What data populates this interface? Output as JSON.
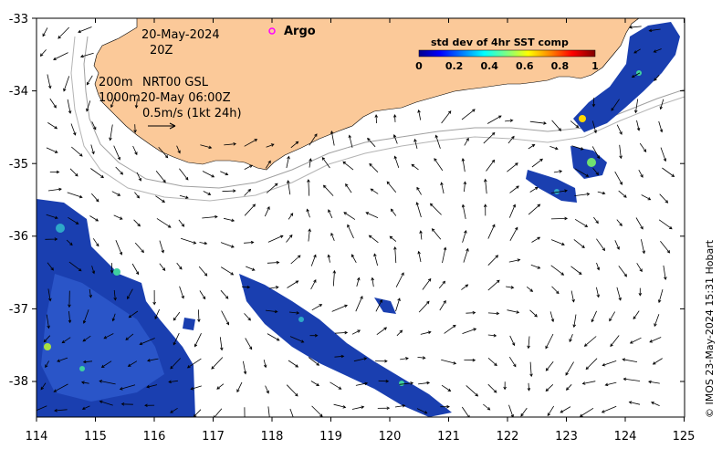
{
  "map": {
    "date_line": "20-May-2024",
    "hour_line": "20Z",
    "argo_label": "Argo",
    "isobath_line1": "200m",
    "isobath_line2": "1000m",
    "product_line1": "NRT00 GSL",
    "product_line2": "20-May 06:00Z",
    "scale_label": "0.5m/s (1kt 24h)",
    "credit": "© IMOS 23-May-2024 15:31 Hobart",
    "colorbar": {
      "title": "std dev of 4hr SST comp",
      "ticks": [
        "0",
        "0.2",
        "0.4",
        "0.6",
        "0.8",
        "1"
      ],
      "colors": [
        "#00008f",
        "#0000ff",
        "#0080ff",
        "#00ffff",
        "#80ff80",
        "#ffff00",
        "#ff8000",
        "#ff0000",
        "#800000"
      ]
    },
    "axes": {
      "lon_ticks": [
        "114",
        "115",
        "116",
        "117",
        "118",
        "119",
        "120",
        "121",
        "122",
        "123",
        "124",
        "125"
      ],
      "lat_ticks": [
        "-33",
        "-34",
        "-35",
        "-36",
        "-37",
        "-38"
      ],
      "lon_range": [
        114,
        125
      ],
      "lat_range": [
        -38.5,
        -33
      ]
    },
    "colors": {
      "land": "#fbc999",
      "isobath": "#999999",
      "argo": "#ff00ff",
      "sst_base": "#1a3fb0"
    }
  }
}
